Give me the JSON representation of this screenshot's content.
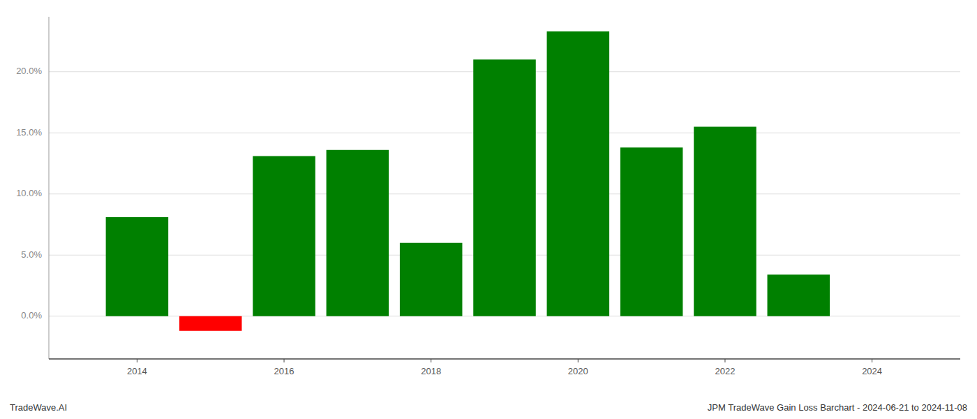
{
  "chart_data": {
    "type": "bar",
    "x": [
      2014,
      2015,
      2016,
      2017,
      2018,
      2019,
      2020,
      2021,
      2022,
      2023
    ],
    "values": [
      0.081,
      -0.012,
      0.131,
      0.136,
      0.06,
      0.21,
      0.233,
      0.138,
      0.155,
      0.034
    ],
    "colors": [
      "#008000",
      "#ff0000",
      "#008000",
      "#008000",
      "#008000",
      "#008000",
      "#008000",
      "#008000",
      "#008000",
      "#008000"
    ],
    "xlim": [
      2012.8,
      2025.2
    ],
    "xticks": [
      2014,
      2016,
      2018,
      2020,
      2022,
      2024
    ],
    "ylim": [
      -0.035,
      0.245
    ],
    "yticks": [
      {
        "value": 0,
        "label": "0.0%"
      },
      {
        "value": 0.05,
        "label": "5.0%"
      },
      {
        "value": 0.1,
        "label": "10.0%"
      },
      {
        "value": 0.15,
        "label": "15.0%"
      },
      {
        "value": 0.2,
        "label": "20.0%"
      }
    ],
    "grid": true,
    "annotations": [
      "TradeWave.AI",
      "JPM TradeWave Gain Loss Barchart - 2024-06-21 to 2024-11-08"
    ]
  }
}
